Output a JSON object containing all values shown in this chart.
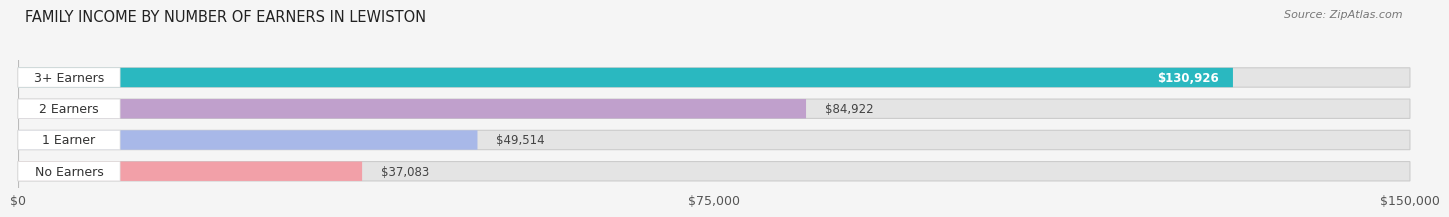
{
  "title": "FAMILY INCOME BY NUMBER OF EARNERS IN LEWISTON",
  "source": "Source: ZipAtlas.com",
  "categories": [
    "No Earners",
    "1 Earner",
    "2 Earners",
    "3+ Earners"
  ],
  "values": [
    37083,
    49514,
    84922,
    130926
  ],
  "bar_colors": [
    "#f2a0a8",
    "#a8b8e8",
    "#c0a0cc",
    "#2ab8c0"
  ],
  "value_labels": [
    "$37,083",
    "$49,514",
    "$84,922",
    "$130,926"
  ],
  "xlim": [
    0,
    150000
  ],
  "xticks": [
    0,
    75000,
    150000
  ],
  "xtick_labels": [
    "$0",
    "$75,000",
    "$150,000"
  ],
  "bar_height": 0.62,
  "background_color": "#f5f5f5",
  "bar_background_color": "#e4e4e4",
  "title_fontsize": 10.5,
  "label_fontsize": 9,
  "value_fontsize": 8.5,
  "source_fontsize": 8
}
